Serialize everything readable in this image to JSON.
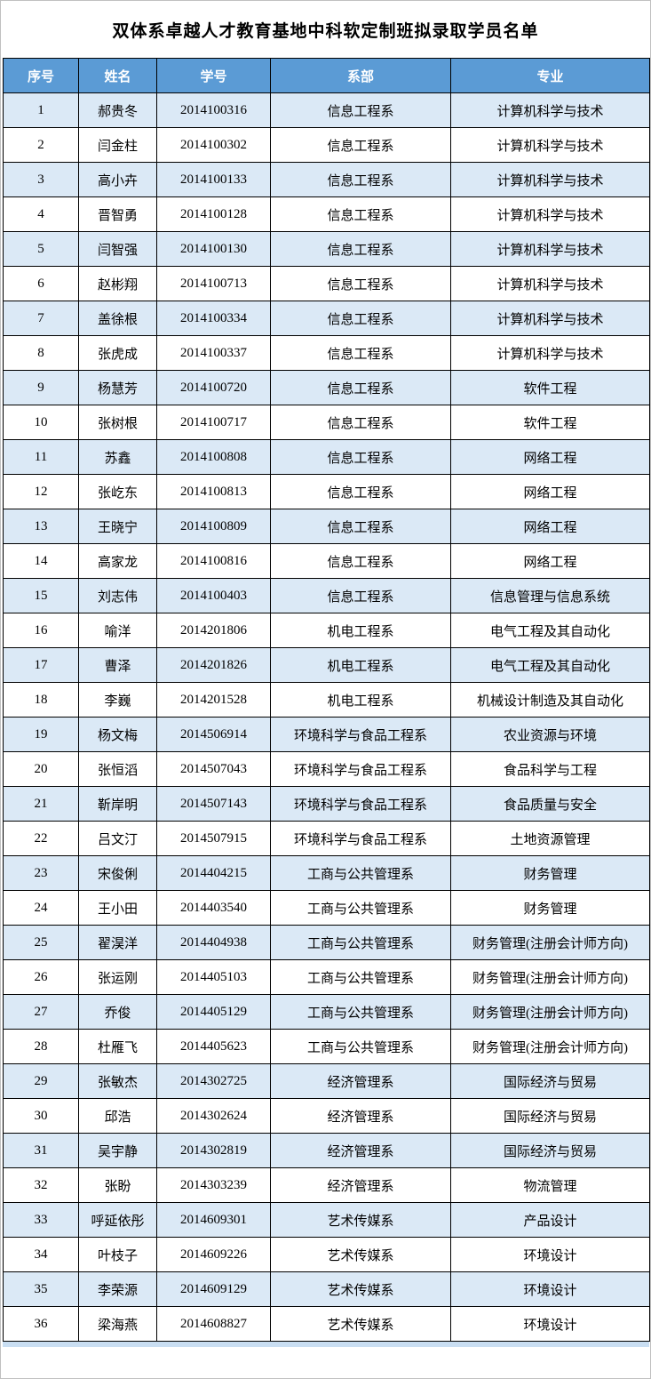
{
  "title": "双体系卓越人才教育基地中科软定制班拟录取学员名单",
  "colors": {
    "header_bg": "#5b9bd5",
    "header_text": "#ffffff",
    "band_row_bg": "#dbe9f6",
    "plain_row_bg": "#ffffff",
    "cell_border": "#000000",
    "outer_border": "#c0c0c0"
  },
  "table": {
    "headers": [
      "序号",
      "姓名",
      "学号",
      "系部",
      "专业"
    ],
    "rows": [
      [
        "1",
        "郝贵冬",
        "2014100316",
        "信息工程系",
        "计算机科学与技术"
      ],
      [
        "2",
        "闫金柱",
        "2014100302",
        "信息工程系",
        "计算机科学与技术"
      ],
      [
        "3",
        "高小卉",
        "2014100133",
        "信息工程系",
        "计算机科学与技术"
      ],
      [
        "4",
        "晋智勇",
        "2014100128",
        "信息工程系",
        "计算机科学与技术"
      ],
      [
        "5",
        "闫智强",
        "2014100130",
        "信息工程系",
        "计算机科学与技术"
      ],
      [
        "6",
        "赵彬翔",
        "2014100713",
        "信息工程系",
        "计算机科学与技术"
      ],
      [
        "7",
        "盖徐根",
        "2014100334",
        "信息工程系",
        "计算机科学与技术"
      ],
      [
        "8",
        "张虎成",
        "2014100337",
        "信息工程系",
        "计算机科学与技术"
      ],
      [
        "9",
        "杨慧芳",
        "2014100720",
        "信息工程系",
        "软件工程"
      ],
      [
        "10",
        "张树根",
        "2014100717",
        "信息工程系",
        "软件工程"
      ],
      [
        "11",
        "苏鑫",
        "2014100808",
        "信息工程系",
        "网络工程"
      ],
      [
        "12",
        "张屹东",
        "2014100813",
        "信息工程系",
        "网络工程"
      ],
      [
        "13",
        "王晓宁",
        "2014100809",
        "信息工程系",
        "网络工程"
      ],
      [
        "14",
        "高家龙",
        "2014100816",
        "信息工程系",
        "网络工程"
      ],
      [
        "15",
        "刘志伟",
        "2014100403",
        "信息工程系",
        "信息管理与信息系统"
      ],
      [
        "16",
        "喻洋",
        "2014201806",
        "机电工程系",
        "电气工程及其自动化"
      ],
      [
        "17",
        "曹泽",
        "2014201826",
        "机电工程系",
        "电气工程及其自动化"
      ],
      [
        "18",
        "李巍",
        "2014201528",
        "机电工程系",
        "机械设计制造及其自动化"
      ],
      [
        "19",
        "杨文梅",
        "2014506914",
        "环境科学与食品工程系",
        "农业资源与环境"
      ],
      [
        "20",
        "张恒滔",
        "2014507043",
        "环境科学与食品工程系",
        "食品科学与工程"
      ],
      [
        "21",
        "靳岸明",
        "2014507143",
        "环境科学与食品工程系",
        "食品质量与安全"
      ],
      [
        "22",
        "吕文汀",
        "2014507915",
        "环境科学与食品工程系",
        "土地资源管理"
      ],
      [
        "23",
        "宋俊俐",
        "2014404215",
        "工商与公共管理系",
        "财务管理"
      ],
      [
        "24",
        "王小田",
        "2014403540",
        "工商与公共管理系",
        "财务管理"
      ],
      [
        "25",
        "翟淏洋",
        "2014404938",
        "工商与公共管理系",
        "财务管理(注册会计师方向)"
      ],
      [
        "26",
        "张运刚",
        "2014405103",
        "工商与公共管理系",
        "财务管理(注册会计师方向)"
      ],
      [
        "27",
        "乔俊",
        "2014405129",
        "工商与公共管理系",
        "财务管理(注册会计师方向)"
      ],
      [
        "28",
        "杜雁飞",
        "2014405623",
        "工商与公共管理系",
        "财务管理(注册会计师方向)"
      ],
      [
        "29",
        "张敏杰",
        "2014302725",
        "经济管理系",
        "国际经济与贸易"
      ],
      [
        "30",
        "邱浩",
        "2014302624",
        "经济管理系",
        "国际经济与贸易"
      ],
      [
        "31",
        "吴宇静",
        "2014302819",
        "经济管理系",
        "国际经济与贸易"
      ],
      [
        "32",
        "张盼",
        "2014303239",
        "经济管理系",
        "物流管理"
      ],
      [
        "33",
        "呼延依彤",
        "2014609301",
        "艺术传媒系",
        "产品设计"
      ],
      [
        "34",
        "叶枝子",
        "2014609226",
        "艺术传媒系",
        "环境设计"
      ],
      [
        "35",
        "李荣源",
        "2014609129",
        "艺术传媒系",
        "环境设计"
      ],
      [
        "36",
        "梁海燕",
        "2014608827",
        "艺术传媒系",
        "环境设计"
      ]
    ]
  }
}
